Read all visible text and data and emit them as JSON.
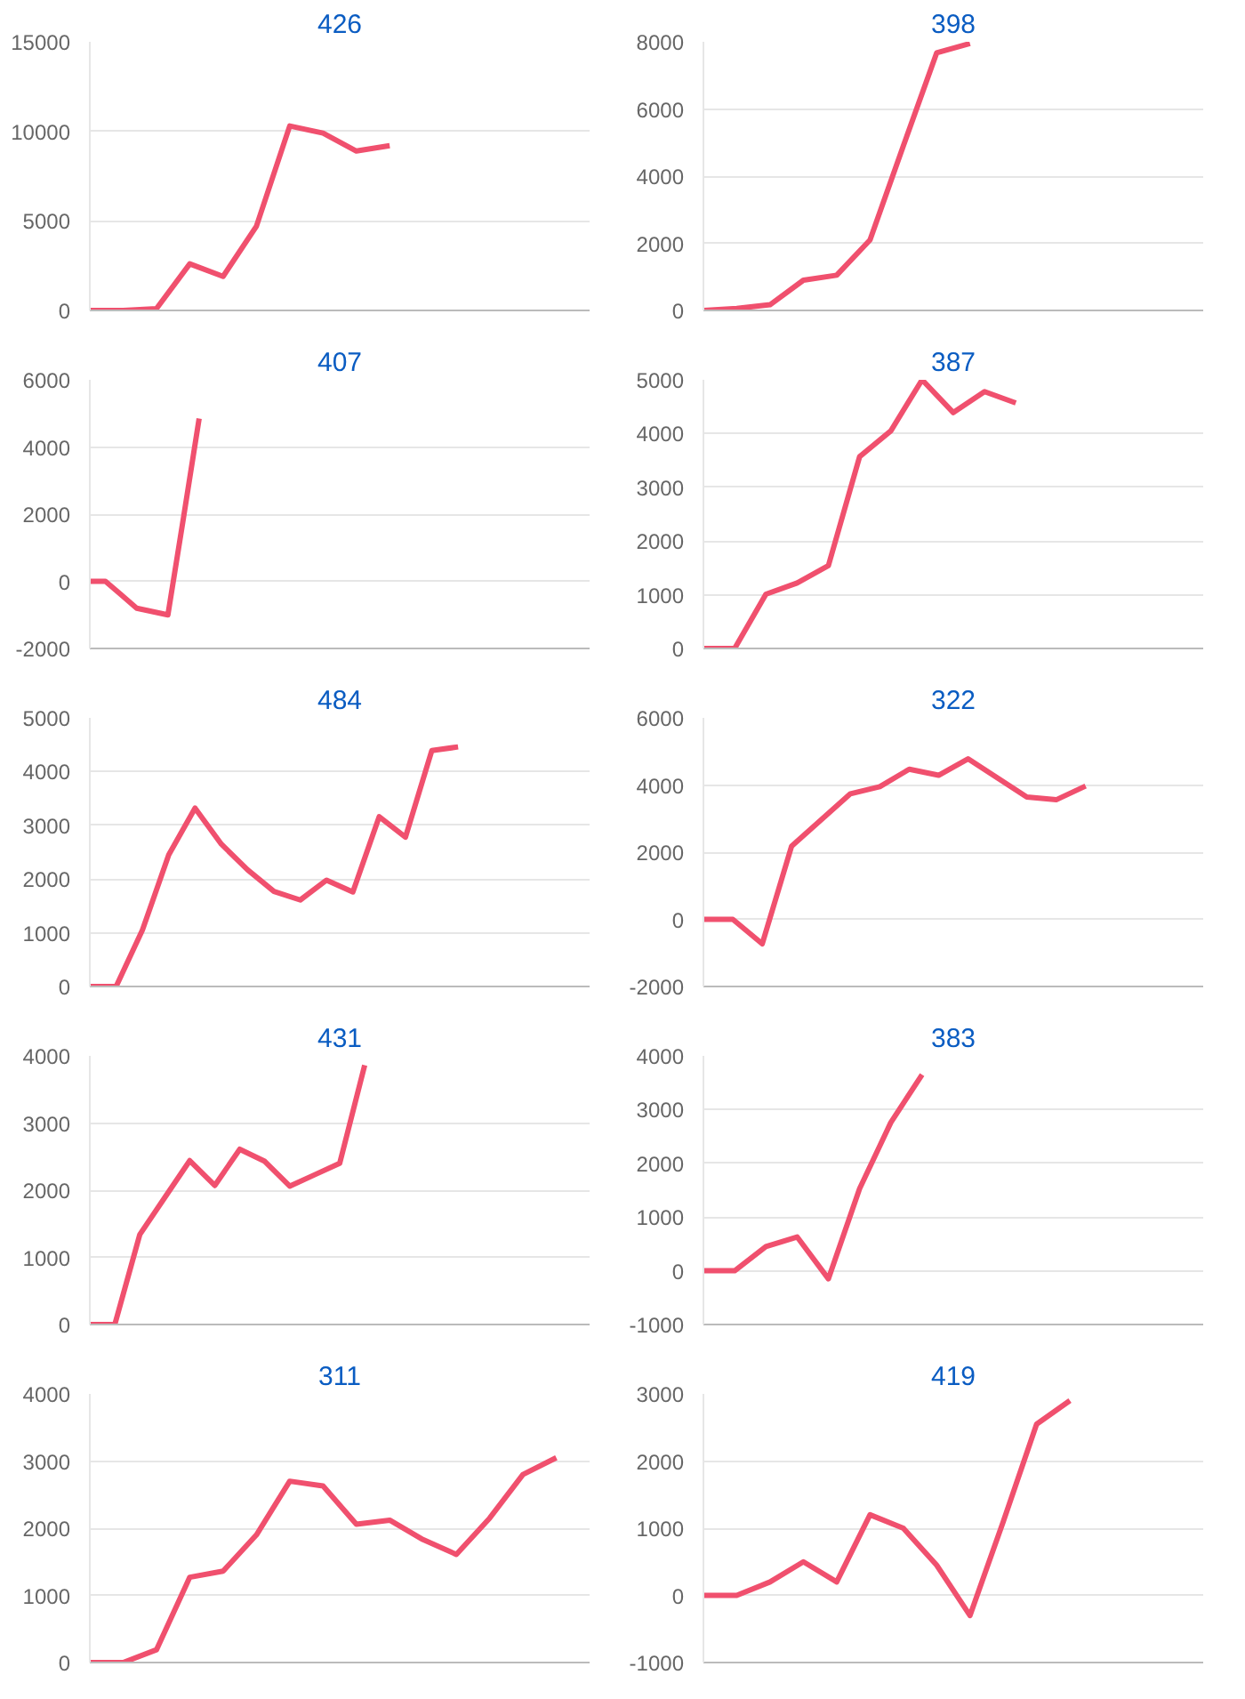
{
  "chart_data": [
    {
      "type": "line",
      "title": "426",
      "categories": [
        null,
        null,
        null,
        null,
        null,
        null,
        null,
        null,
        null,
        null,
        null,
        null,
        null,
        null,
        null,
        null
      ],
      "series": [
        {
          "color": "#f0506e",
          "values": [
            0,
            0,
            100,
            2600,
            1900,
            4700,
            10300,
            9900,
            8900,
            9200,
            null,
            null,
            null,
            null,
            null,
            null
          ]
        }
      ],
      "ylim": [
        0,
        15000
      ],
      "yticks": [
        0,
        5000,
        10000,
        15000
      ],
      "grid": "y",
      "tick_labels": "y",
      "marker": "none",
      "line_style": "solid"
    },
    {
      "type": "line",
      "title": "398",
      "categories": [
        null,
        null,
        null,
        null,
        null,
        null,
        null,
        null,
        null,
        null,
        null,
        null,
        null,
        null,
        null,
        null
      ],
      "series": [
        {
          "color": "#f0506e",
          "values": [
            0,
            60,
            170,
            900,
            1050,
            2100,
            4900,
            7670,
            7950,
            null,
            null,
            null,
            null,
            null,
            null,
            null
          ]
        }
      ],
      "ylim": [
        0,
        8000
      ],
      "yticks": [
        0,
        2000,
        4000,
        6000,
        8000
      ],
      "grid": "y",
      "tick_labels": "y",
      "marker": "none",
      "line_style": "solid"
    },
    {
      "type": "line",
      "title": "407",
      "categories": [
        null,
        null,
        null,
        null,
        null,
        null,
        null,
        null,
        null,
        null,
        null,
        null,
        null,
        null,
        null,
        null,
        null,
        null,
        null,
        null,
        null,
        null,
        null,
        null,
        null,
        null,
        null,
        null,
        null,
        null,
        null,
        null,
        null
      ],
      "series": [
        {
          "color": "#f0506e",
          "values": [
            0,
            0,
            -400,
            -800,
            -900,
            -1000,
            1900,
            4850,
            null,
            null,
            null,
            null,
            null,
            null,
            null,
            null,
            null,
            null,
            null,
            null,
            null,
            null,
            null,
            null,
            null,
            null,
            null,
            null,
            null,
            null,
            null,
            null,
            null
          ]
        }
      ],
      "ylim": [
        -2000,
        6000
      ],
      "yticks": [
        -2000,
        0,
        2000,
        4000,
        6000
      ],
      "grid": "y",
      "tick_labels": "y",
      "marker": "none",
      "line_style": "solid"
    },
    {
      "type": "line",
      "title": "387",
      "categories": [
        null,
        null,
        null,
        null,
        null,
        null,
        null,
        null,
        null,
        null,
        null,
        null,
        null,
        null,
        null,
        null,
        null
      ],
      "series": [
        {
          "color": "#f0506e",
          "values": [
            0,
            0,
            1010,
            1220,
            1540,
            3570,
            4050,
            5000,
            4390,
            4780,
            4570,
            null,
            null,
            null,
            null,
            null,
            null
          ]
        }
      ],
      "ylim": [
        0,
        5000
      ],
      "yticks": [
        0,
        1000,
        2000,
        3000,
        4000,
        5000
      ],
      "grid": "y",
      "tick_labels": "y",
      "marker": "none",
      "line_style": "solid"
    },
    {
      "type": "line",
      "title": "484",
      "categories": [
        null,
        null,
        null,
        null,
        null,
        null,
        null,
        null,
        null,
        null,
        null,
        null,
        null,
        null,
        null,
        null,
        null,
        null,
        null,
        null
      ],
      "series": [
        {
          "color": "#f0506e",
          "values": [
            0,
            0,
            1050,
            2450,
            3320,
            2650,
            2170,
            1770,
            1610,
            1980,
            1760,
            3160,
            2780,
            4390,
            4460,
            null,
            null,
            null,
            null,
            null
          ]
        }
      ],
      "ylim": [
        0,
        5000
      ],
      "yticks": [
        0,
        1000,
        2000,
        3000,
        4000,
        5000
      ],
      "grid": "y",
      "tick_labels": "y",
      "marker": "none",
      "line_style": "solid"
    },
    {
      "type": "line",
      "title": "322",
      "categories": [
        null,
        null,
        null,
        null,
        null,
        null,
        null,
        null,
        null,
        null,
        null,
        null,
        null,
        null,
        null,
        null,
        null,
        null
      ],
      "series": [
        {
          "color": "#f0506e",
          "values": [
            0,
            0,
            -730,
            2180,
            2960,
            3740,
            3950,
            4470,
            4290,
            4780,
            4210,
            3640,
            3560,
            3970,
            null,
            null,
            null,
            null
          ]
        }
      ],
      "ylim": [
        -2000,
        6000
      ],
      "yticks": [
        -2000,
        0,
        2000,
        4000,
        6000
      ],
      "grid": "y",
      "tick_labels": "y",
      "marker": "none",
      "line_style": "solid"
    },
    {
      "type": "line",
      "title": "431",
      "categories": [
        null,
        null,
        null,
        null,
        null,
        null,
        null,
        null,
        null,
        null,
        null,
        null,
        null,
        null,
        null,
        null,
        null,
        null,
        null,
        null,
        null
      ],
      "series": [
        {
          "color": "#f0506e",
          "values": [
            0,
            0,
            1340,
            1890,
            2440,
            2070,
            2610,
            2430,
            2060,
            2230,
            2400,
            3860,
            null,
            null,
            null,
            null,
            null,
            null,
            null,
            null,
            null
          ]
        }
      ],
      "ylim": [
        0,
        4000
      ],
      "yticks": [
        0,
        1000,
        2000,
        3000,
        4000
      ],
      "grid": "y",
      "tick_labels": "y",
      "marker": "none",
      "line_style": "solid"
    },
    {
      "type": "line",
      "title": "383",
      "categories": [
        null,
        null,
        null,
        null,
        null,
        null,
        null,
        null,
        null,
        null,
        null,
        null,
        null,
        null,
        null,
        null,
        null
      ],
      "series": [
        {
          "color": "#f0506e",
          "values": [
            0,
            0,
            450,
            630,
            -150,
            1530,
            2760,
            3650,
            null,
            null,
            null,
            null,
            null,
            null,
            null,
            null,
            null
          ]
        }
      ],
      "ylim": [
        -1000,
        4000
      ],
      "yticks": [
        -1000,
        0,
        1000,
        2000,
        3000,
        4000
      ],
      "grid": "y",
      "tick_labels": "y",
      "marker": "none",
      "line_style": "solid"
    },
    {
      "type": "line",
      "title": "311",
      "categories": [
        null,
        null,
        null,
        null,
        null,
        null,
        null,
        null,
        null,
        null,
        null,
        null,
        null,
        null,
        null,
        null
      ],
      "series": [
        {
          "color": "#f0506e",
          "values": [
            0,
            0,
            190,
            1270,
            1360,
            1900,
            2700,
            2630,
            2060,
            2120,
            1830,
            1610,
            2150,
            2800,
            3050,
            null
          ]
        }
      ],
      "ylim": [
        0,
        4000
      ],
      "yticks": [
        0,
        1000,
        2000,
        3000,
        4000
      ],
      "grid": "y",
      "tick_labels": "y",
      "marker": "none",
      "line_style": "solid"
    },
    {
      "type": "line",
      "title": "419",
      "categories": [
        null,
        null,
        null,
        null,
        null,
        null,
        null,
        null,
        null,
        null,
        null,
        null,
        null,
        null,
        null,
        null
      ],
      "series": [
        {
          "color": "#f0506e",
          "values": [
            0,
            0,
            200,
            500,
            200,
            1200,
            1000,
            450,
            -300,
            1100,
            2550,
            2900,
            null,
            null,
            null,
            null
          ]
        }
      ],
      "ylim": [
        -1000,
        3000
      ],
      "yticks": [
        -1000,
        0,
        1000,
        2000,
        3000
      ],
      "grid": "y",
      "tick_labels": "y",
      "marker": "none",
      "line_style": "solid"
    }
  ]
}
